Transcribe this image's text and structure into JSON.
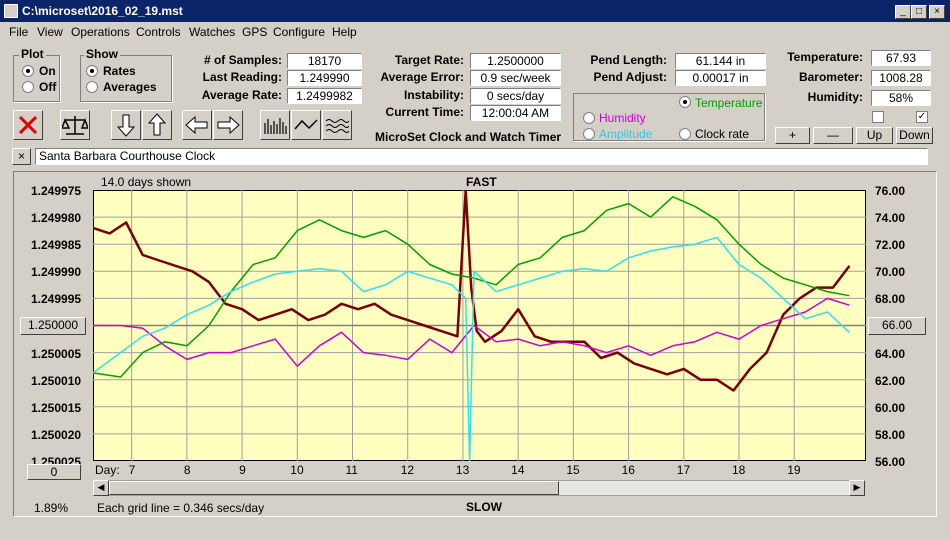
{
  "window": {
    "title": "C:\\microset\\2016_02_19.mst"
  },
  "menu": [
    "File",
    "View",
    "Operations",
    "Controls",
    "Watches",
    "GPS",
    "Configure",
    "Help"
  ],
  "plot_group": {
    "title": "Plot",
    "on": "On",
    "off": "Off"
  },
  "show_group": {
    "title": "Show",
    "rates": "Rates",
    "averages": "Averages"
  },
  "stats": {
    "samples_label": "# of Samples:",
    "samples": "18170",
    "last_label": "Last Reading:",
    "last": "1.249990",
    "avg_label": "Average Rate:",
    "avg": "1.2499982",
    "target_label": "Target Rate:",
    "target": "1.2500000",
    "error_label": "Average Error:",
    "error": "0.9 sec/week",
    "instab_label": "Instability:",
    "instab": "0 secs/day",
    "time_label": "Current Time:",
    "time": "12:00:04 AM",
    "app_name": "MicroSet Clock and Watch Timer",
    "pend_len_label": "Pend Length:",
    "pend_len": "61.144 in",
    "pend_adj_label": "Pend Adjust:",
    "pend_adj": "0.00017 in",
    "temp_label": "Temperature:",
    "temp": "67.93",
    "baro_label": "Barometer:",
    "baro": "1008.28",
    "hum_label": "Humidity:",
    "hum": "58%"
  },
  "aux_options": {
    "temperature": "Temperature",
    "humidity": "Humidity",
    "amplitude": "Amplitude",
    "clock_rate": "Clock rate"
  },
  "aux_buttons": {
    "plus": "+",
    "minus": "—",
    "up": "Up",
    "down": "Down"
  },
  "colors": {
    "rate": "#7a0000",
    "temperature": "#00a000",
    "humidity": "#d000d0",
    "amplitude": "#30e0f0",
    "plot_bg": "#ffffc0"
  },
  "clock_name": "Santa Barbara Courthouse Clock",
  "chart_header": {
    "days_shown": "14.0 days shown",
    "fast": "FAST",
    "slow": "SLOW"
  },
  "left_value_box": "1.250000",
  "right_value_box": "66.00",
  "zero_box": "0",
  "footer": {
    "percent": "1.89%",
    "grid_note": "Each grid line = 0.346 secs/day"
  },
  "chart_data": {
    "type": "line",
    "xlabel": "Day:",
    "x_ticks": [
      7,
      8,
      9,
      10,
      11,
      12,
      13,
      14,
      15,
      16,
      17,
      18,
      19
    ],
    "xlim": [
      6.3,
      20.3
    ],
    "y_left_ticks": [
      "1.249975",
      "1.249980",
      "1.249985",
      "1.249990",
      "1.249995",
      "1.250000",
      "1.250005",
      "1.250010",
      "1.250015",
      "1.250020",
      "1.250025"
    ],
    "y_left_lim": [
      1.249975,
      1.250025
    ],
    "y_right_ticks": [
      "76.00",
      "74.00",
      "72.00",
      "70.00",
      "68.00",
      "66.00",
      "64.00",
      "62.00",
      "60.00",
      "58.00",
      "56.00"
    ],
    "y_right_lim": [
      56,
      76
    ],
    "grid": true,
    "series": [
      {
        "key": "rate",
        "axis": "left",
        "x": [
          6.3,
          6.6,
          6.9,
          7.2,
          7.5,
          7.8,
          8.1,
          8.4,
          8.7,
          9.0,
          9.3,
          9.6,
          9.9,
          10.2,
          10.5,
          10.8,
          11.1,
          11.4,
          11.7,
          12.0,
          12.3,
          12.6,
          12.9,
          13.05,
          13.15,
          13.25,
          13.4,
          13.7,
          14.0,
          14.3,
          14.6,
          14.9,
          15.2,
          15.5,
          15.8,
          16.1,
          16.4,
          16.7,
          17.0,
          17.3,
          17.6,
          17.9,
          18.2,
          18.5,
          18.8,
          19.1,
          19.4,
          19.7,
          20.0
        ],
        "y": [
          1.249982,
          1.249983,
          1.249981,
          1.249987,
          1.249988,
          1.249989,
          1.24999,
          1.249992,
          1.249996,
          1.249997,
          1.249999,
          1.249998,
          1.249997,
          1.249999,
          1.249998,
          1.249996,
          1.249997,
          1.249996,
          1.249998,
          1.249999,
          1.25,
          1.250001,
          1.250002,
          1.249975,
          1.249993,
          1.250001,
          1.250003,
          1.250001,
          1.249997,
          1.250002,
          1.250003,
          1.250003,
          1.250003,
          1.250006,
          1.250005,
          1.250007,
          1.250008,
          1.250009,
          1.250008,
          1.25001,
          1.25001,
          1.250012,
          1.250008,
          1.250005,
          1.249998,
          1.249995,
          1.249993,
          1.249993,
          1.249989
        ]
      },
      {
        "key": "temperature",
        "axis": "right",
        "x": [
          6.3,
          6.8,
          7.2,
          7.6,
          8.0,
          8.4,
          8.8,
          9.2,
          9.6,
          10.0,
          10.4,
          10.8,
          11.2,
          11.6,
          12.0,
          12.4,
          12.8,
          13.2,
          13.6,
          14.0,
          14.4,
          14.8,
          15.2,
          15.6,
          16.0,
          16.4,
          16.8,
          17.2,
          17.6,
          18.0,
          18.4,
          18.8,
          19.2,
          19.6,
          20.0
        ],
        "y": [
          62.5,
          62.2,
          64.0,
          64.8,
          64.5,
          66.0,
          68.5,
          70.5,
          71.0,
          73.0,
          73.8,
          73.0,
          72.5,
          73.0,
          72.0,
          70.5,
          69.8,
          69.5,
          69.0,
          70.5,
          71.0,
          72.5,
          73.0,
          74.5,
          75.0,
          74.0,
          75.5,
          74.8,
          73.8,
          72.0,
          70.5,
          69.5,
          69.0,
          68.5,
          68.2
        ]
      },
      {
        "key": "humidity",
        "axis": "right",
        "x": [
          6.3,
          6.8,
          7.2,
          7.6,
          8.0,
          8.4,
          8.8,
          9.2,
          9.6,
          10.0,
          10.4,
          10.8,
          11.2,
          11.6,
          12.0,
          12.4,
          12.8,
          13.2,
          13.6,
          14.0,
          14.4,
          14.8,
          15.2,
          15.6,
          16.0,
          16.4,
          16.8,
          17.2,
          17.6,
          18.0,
          18.4,
          18.8,
          19.2,
          19.6,
          20.0
        ],
        "y": [
          66.0,
          66.0,
          65.8,
          64.5,
          63.5,
          64.0,
          64.0,
          64.5,
          65.0,
          63.0,
          64.5,
          65.5,
          64.0,
          63.8,
          63.5,
          65.0,
          64.0,
          66.0,
          64.8,
          65.0,
          64.5,
          64.8,
          64.5,
          64.0,
          64.5,
          63.8,
          64.5,
          64.8,
          65.5,
          65.0,
          66.0,
          66.5,
          67.0,
          68.0,
          67.5
        ]
      },
      {
        "key": "amplitude",
        "axis": "right",
        "x": [
          6.3,
          6.8,
          7.2,
          7.6,
          8.0,
          8.4,
          8.8,
          9.2,
          9.6,
          10.0,
          10.4,
          10.8,
          11.2,
          11.6,
          12.0,
          12.4,
          12.8,
          13.05,
          13.12,
          13.2,
          13.6,
          14.0,
          14.4,
          14.8,
          15.2,
          15.6,
          16.0,
          16.4,
          16.8,
          17.2,
          17.6,
          18.0,
          18.4,
          18.8,
          19.2,
          19.6,
          20.0
        ],
        "y": [
          62.5,
          64.0,
          65.2,
          65.8,
          66.8,
          67.5,
          68.5,
          69.2,
          69.8,
          70.0,
          70.2,
          70.0,
          68.5,
          69.0,
          70.0,
          69.5,
          69.0,
          68.0,
          56.0,
          70.0,
          68.5,
          69.0,
          69.5,
          70.0,
          70.2,
          70.0,
          71.0,
          71.5,
          71.8,
          72.0,
          72.5,
          70.5,
          69.5,
          68.0,
          66.5,
          67.0,
          65.5
        ]
      }
    ]
  }
}
